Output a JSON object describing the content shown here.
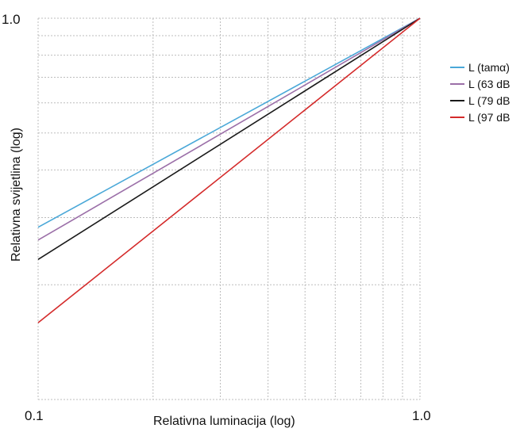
{
  "chart_data": {
    "type": "line",
    "xlabel": "Relativna luminacija (log)",
    "ylabel": "Relativna svijetlina (log)",
    "x_scale": "log",
    "y_scale": "log",
    "xlim": [
      0.1,
      1.0
    ],
    "ylim": [
      0.1,
      1.0
    ],
    "x_tick_labels": [
      "0.1",
      "1.0"
    ],
    "y_tick_labels": [
      "1.0"
    ],
    "grid": true,
    "legend_position": "right",
    "series": [
      {
        "name": "L (tamα)",
        "color": "#4aa8d8",
        "x": [
          0.1,
          1.0
        ],
        "y": [
          0.283,
          1.0
        ]
      },
      {
        "name": "L (63 dB",
        "color": "#9b6fa8",
        "x": [
          0.1,
          1.0
        ],
        "y": [
          0.262,
          1.0
        ]
      },
      {
        "name": "L (79 dB",
        "color": "#1a1a1a",
        "x": [
          0.1,
          1.0
        ],
        "y": [
          0.233,
          1.0
        ]
      },
      {
        "name": "L (97 dB",
        "color": "#d42a2a",
        "x": [
          0.1,
          1.0
        ],
        "y": [
          0.159,
          1.0
        ]
      }
    ]
  }
}
